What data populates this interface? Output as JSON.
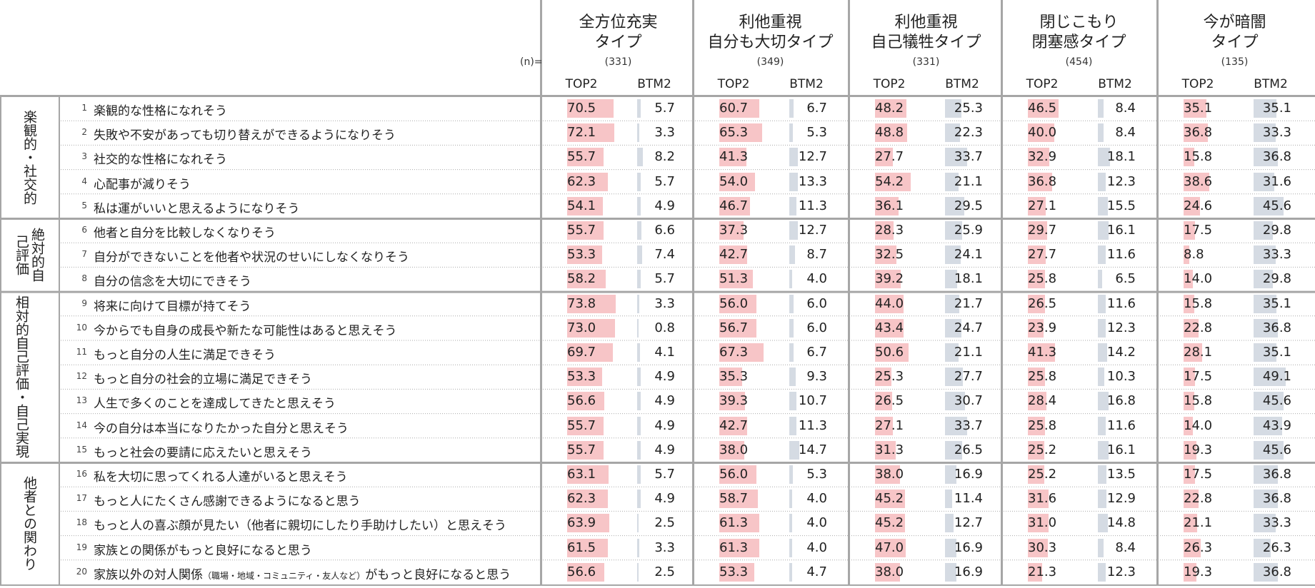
{
  "table": {
    "n_label": "(n)=",
    "col_sub_labels": [
      "TOP2",
      "BTM2"
    ]
  },
  "chart_data": {
    "type": "table",
    "groups": [
      {
        "title_lines": [
          "全方位充実",
          "タイプ"
        ],
        "n": "(331)"
      },
      {
        "title_lines": [
          "利他重視",
          "自分も大切タイプ"
        ],
        "n": "(349)"
      },
      {
        "title_lines": [
          "利他重視",
          "自己犠牲タイプ"
        ],
        "n": "(331)"
      },
      {
        "title_lines": [
          "閉じこもり",
          "閉塞感タイプ"
        ],
        "n": "(454)"
      },
      {
        "title_lines": [
          "今が暗闇",
          "タイプ"
        ],
        "n": "(135)"
      }
    ],
    "categories": [
      {
        "label": "楽観的・社交的",
        "rows": [
          1,
          5
        ]
      },
      {
        "label": "絶対的自己評価",
        "rows": [
          6,
          8
        ]
      },
      {
        "label": "相対的自己評価・自己実現",
        "rows": [
          9,
          15
        ]
      },
      {
        "label": "他者との関わり",
        "rows": [
          16,
          20
        ]
      }
    ],
    "colors": {
      "top2_bar": "#f7c5c7",
      "btm2_bar": "#d5dbe3",
      "border": "#a6a6a6"
    },
    "items": [
      {
        "no": "1",
        "text": "楽観的な性格になれそう",
        "top2": [
          "70.5",
          "60.7",
          "48.2",
          "46.5",
          "35.1"
        ],
        "btm2": [
          "5.7",
          "6.7",
          "25.3",
          "8.4",
          "35.1"
        ]
      },
      {
        "no": "2",
        "text": "失敗や不安があっても切り替えができるようになりそう",
        "top2": [
          "72.1",
          "65.3",
          "48.8",
          "40.0",
          "36.8"
        ],
        "btm2": [
          "3.3",
          "5.3",
          "22.3",
          "8.4",
          "33.3"
        ]
      },
      {
        "no": "3",
        "text": "社交的な性格になれそう",
        "top2": [
          "55.7",
          "41.3",
          "27.7",
          "32.9",
          "15.8"
        ],
        "btm2": [
          "8.2",
          "12.7",
          "33.7",
          "18.1",
          "36.8"
        ]
      },
      {
        "no": "4",
        "text": "心配事が減りそう",
        "top2": [
          "62.3",
          "54.0",
          "54.2",
          "36.8",
          "38.6"
        ],
        "btm2": [
          "5.7",
          "13.3",
          "21.1",
          "12.3",
          "31.6"
        ]
      },
      {
        "no": "5",
        "text": "私は運がいいと思えるようになりそう",
        "top2": [
          "54.1",
          "46.7",
          "36.1",
          "27.1",
          "24.6"
        ],
        "btm2": [
          "4.9",
          "11.3",
          "29.5",
          "15.5",
          "45.6"
        ]
      },
      {
        "no": "6",
        "text": "他者と自分を比較しなくなりそう",
        "top2": [
          "55.7",
          "37.3",
          "28.3",
          "29.7",
          "17.5"
        ],
        "btm2": [
          "6.6",
          "12.7",
          "25.9",
          "16.1",
          "29.8"
        ]
      },
      {
        "no": "7",
        "text": "自分ができないことを他者や状況のせいにしなくなりそう",
        "top2": [
          "53.3",
          "42.7",
          "32.5",
          "27.7",
          "8.8"
        ],
        "btm2": [
          "7.4",
          "8.7",
          "24.1",
          "11.6",
          "33.3"
        ]
      },
      {
        "no": "8",
        "text": "自分の信念を大切にできそう",
        "top2": [
          "58.2",
          "51.3",
          "39.2",
          "25.8",
          "14.0"
        ],
        "btm2": [
          "5.7",
          "4.0",
          "18.1",
          "6.5",
          "29.8"
        ]
      },
      {
        "no": "9",
        "text": "将来に向けて目標が持てそう",
        "top2": [
          "73.8",
          "56.0",
          "44.0",
          "26.5",
          "15.8"
        ],
        "btm2": [
          "3.3",
          "6.0",
          "21.7",
          "11.6",
          "35.1"
        ]
      },
      {
        "no": "10",
        "text": "今からでも自身の成長や新たな可能性はあると思えそう",
        "top2": [
          "73.0",
          "56.7",
          "43.4",
          "23.9",
          "22.8"
        ],
        "btm2": [
          "0.8",
          "6.0",
          "24.7",
          "12.3",
          "36.8"
        ]
      },
      {
        "no": "11",
        "text": "もっと自分の人生に満足できそう",
        "top2": [
          "69.7",
          "67.3",
          "50.6",
          "41.3",
          "28.1"
        ],
        "btm2": [
          "4.1",
          "6.7",
          "21.1",
          "14.2",
          "35.1"
        ]
      },
      {
        "no": "12",
        "text": "もっと自分の社会的立場に満足できそう",
        "top2": [
          "53.3",
          "35.3",
          "25.3",
          "25.8",
          "17.5"
        ],
        "btm2": [
          "4.9",
          "9.3",
          "27.7",
          "10.3",
          "49.1"
        ]
      },
      {
        "no": "13",
        "text": "人生で多くのことを達成してきたと思えそう",
        "top2": [
          "56.6",
          "39.3",
          "26.5",
          "28.4",
          "15.8"
        ],
        "btm2": [
          "4.9",
          "10.7",
          "30.7",
          "16.8",
          "45.6"
        ]
      },
      {
        "no": "14",
        "text": "今の自分は本当になりたかった自分と思えそう",
        "top2": [
          "55.7",
          "42.7",
          "27.1",
          "25.8",
          "14.0"
        ],
        "btm2": [
          "4.9",
          "11.3",
          "33.7",
          "11.6",
          "43.9"
        ]
      },
      {
        "no": "15",
        "text": "もっと社会の要請に応えたいと思えそう",
        "top2": [
          "55.7",
          "38.0",
          "31.3",
          "25.2",
          "19.3"
        ],
        "btm2": [
          "4.9",
          "14.7",
          "26.5",
          "16.1",
          "45.6"
        ]
      },
      {
        "no": "16",
        "text": "私を大切に思ってくれる人達がいると思えそう",
        "top2": [
          "63.1",
          "56.0",
          "38.0",
          "25.2",
          "17.5"
        ],
        "btm2": [
          "5.7",
          "5.3",
          "16.9",
          "13.5",
          "36.8"
        ]
      },
      {
        "no": "17",
        "text": "もっと人にたくさん感謝できるようになると思う",
        "top2": [
          "62.3",
          "58.7",
          "45.2",
          "31.6",
          "22.8"
        ],
        "btm2": [
          "4.9",
          "4.0",
          "11.4",
          "12.9",
          "36.8"
        ]
      },
      {
        "no": "18",
        "text": "もっと人の喜ぶ顔が見たい（他者に親切にしたり手助けしたい）と思えそう",
        "top2": [
          "63.9",
          "61.3",
          "45.2",
          "31.0",
          "21.1"
        ],
        "btm2": [
          "2.5",
          "4.0",
          "12.7",
          "14.8",
          "33.3"
        ]
      },
      {
        "no": "19",
        "text": "家族との関係がもっと良好になると思う",
        "top2": [
          "61.5",
          "61.3",
          "47.0",
          "30.3",
          "26.3"
        ],
        "btm2": [
          "3.3",
          "4.0",
          "16.9",
          "8.4",
          "26.3"
        ]
      },
      {
        "no": "20",
        "text": "家族以外の対人関係",
        "text_small": "（職場・地域・コミュニティ・友人など）",
        "text_after": "がもっと良好になると思う",
        "top2": [
          "56.6",
          "53.3",
          "38.0",
          "21.3",
          "19.3"
        ],
        "btm2": [
          "2.5",
          "4.7",
          "16.9",
          "12.3",
          "36.8"
        ]
      }
    ]
  }
}
